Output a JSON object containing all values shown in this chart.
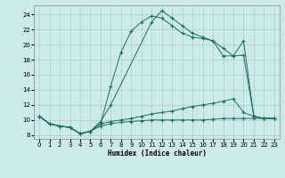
{
  "xlabel": "Humidex (Indice chaleur)",
  "background_color": "#cce9ec",
  "grid_color": "#aacdd2",
  "line_color": "#1a7060",
  "xlim": [
    -0.5,
    23.5
  ],
  "ylim": [
    7.5,
    25.2
  ],
  "xticks": [
    0,
    1,
    2,
    3,
    4,
    5,
    6,
    7,
    8,
    9,
    10,
    11,
    12,
    13,
    14,
    15,
    16,
    17,
    18,
    19,
    20,
    21,
    22,
    23
  ],
  "yticks": [
    8,
    10,
    12,
    14,
    16,
    18,
    20,
    22,
    24
  ],
  "series": [
    {
      "x": [
        0,
        1,
        2,
        3,
        4,
        5,
        6,
        7,
        11,
        12,
        13,
        14,
        15,
        16,
        17,
        18,
        19,
        20,
        21,
        22,
        23
      ],
      "y": [
        10.5,
        9.5,
        9.2,
        9.0,
        8.2,
        8.5,
        9.8,
        12.0,
        23.0,
        24.5,
        23.5,
        22.5,
        21.5,
        21.0,
        20.5,
        19.5,
        18.5,
        20.5,
        10.5,
        10.2,
        10.2
      ]
    },
    {
      "x": [
        0,
        1,
        2,
        3,
        4,
        5,
        6,
        7,
        8,
        9,
        10,
        11,
        12,
        13,
        14,
        15,
        16,
        17,
        18,
        19,
        20,
        21,
        22,
        23
      ],
      "y": [
        10.5,
        9.5,
        9.2,
        9.0,
        8.2,
        8.5,
        9.5,
        9.8,
        10.0,
        10.2,
        10.5,
        10.8,
        11.0,
        11.2,
        11.5,
        11.8,
        12.0,
        12.2,
        12.5,
        12.8,
        11.0,
        10.5,
        10.2,
        10.2
      ]
    },
    {
      "x": [
        0,
        1,
        2,
        3,
        4,
        5,
        6,
        7,
        8,
        9,
        10,
        11,
        12,
        13,
        14,
        15,
        16,
        17,
        18,
        19,
        20,
        21,
        22,
        23
      ],
      "y": [
        10.5,
        9.5,
        9.2,
        9.0,
        8.2,
        8.5,
        9.2,
        9.5,
        9.7,
        9.8,
        9.9,
        10.0,
        10.0,
        10.0,
        10.0,
        10.0,
        10.0,
        10.1,
        10.2,
        10.2,
        10.2,
        10.2,
        10.2,
        10.2
      ]
    },
    {
      "x": [
        0,
        1,
        2,
        3,
        4,
        5,
        6,
        7,
        8,
        9,
        10,
        11,
        12,
        13,
        14,
        15,
        16,
        17,
        18,
        19,
        20,
        21,
        22,
        23
      ],
      "y": [
        10.5,
        9.5,
        9.2,
        9.0,
        8.2,
        8.5,
        9.5,
        14.5,
        19.0,
        21.8,
        23.0,
        23.8,
        23.5,
        22.5,
        21.5,
        21.0,
        20.8,
        20.5,
        18.5,
        18.5,
        18.6,
        10.5,
        10.2,
        10.2
      ]
    }
  ]
}
